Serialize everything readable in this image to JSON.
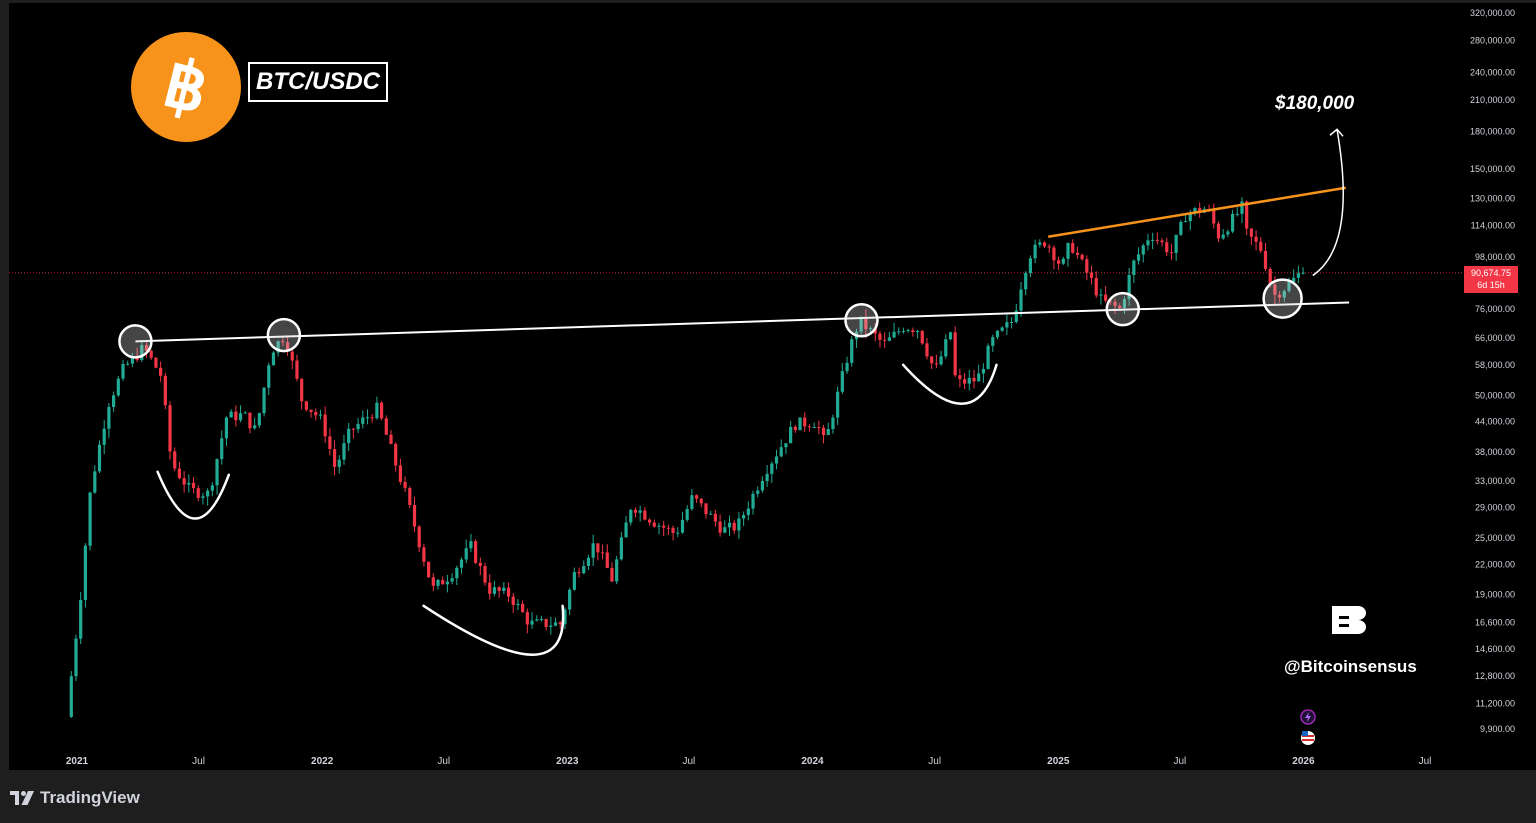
{
  "header": {
    "pair": "BTC/USDC",
    "target": "$180,000",
    "watermark": "@Bitcoinsensus"
  },
  "footer": {
    "brand": "TradingView"
  },
  "last_price": {
    "value": "90,674.75",
    "countdown": "6d 15h"
  },
  "colors": {
    "background": "#000000",
    "up": "#22ab94",
    "down": "#f23645",
    "bitcoin": "#f7931a",
    "resistance_line": "#ffffff",
    "rising_line": "#f7931a"
  },
  "icons": [
    "bitcoin-logo",
    "bitcoinsensus-logo",
    "flash-icon",
    "us-flag-icon",
    "tradingview-logo"
  ],
  "chart_data": {
    "type": "candlestick",
    "title": "BTC/USDC",
    "yscale": "log",
    "ylim": [
      9000,
      330000
    ],
    "y_ticks": [
      320000,
      280000,
      240000,
      210000,
      180000,
      150000,
      130000,
      114000,
      98000,
      90000,
      76000,
      66000,
      58000,
      50000,
      44000,
      38000,
      33000,
      29000,
      25000,
      22000,
      19000,
      16600,
      14600,
      12800,
      11200,
      9900
    ],
    "y_tick_labels": [
      "320,000.00",
      "280,000.00",
      "240,000.00",
      "210,000.00",
      "180,000.00",
      "150,000.00",
      "130,000.00",
      "114,000.00",
      "98,000.00",
      "",
      "76,000.00",
      "66,000.00",
      "58,000.00",
      "50,000.00",
      "44,000.00",
      "38,000.00",
      "33,000.00",
      "29,000.00",
      "25,000.00",
      "22,000.00",
      "19,000.00",
      "16,600.00",
      "14,600.00",
      "12,800.00",
      "11,200.00",
      "9,900.00"
    ],
    "x_ticks": [
      "2021-01-01",
      "2021-07-01",
      "2022-01-01",
      "2022-07-01",
      "2023-01-01",
      "2023-07-01",
      "2024-01-01",
      "2024-07-01",
      "2025-01-01",
      "2025-07-01",
      "2026-01-01",
      "2026-07-01"
    ],
    "x_tick_labels": [
      "2021",
      "Jul",
      "2022",
      "Jul",
      "2023",
      "Jul",
      "2024",
      "Jul",
      "2025",
      "Jul",
      "2026",
      "Jul"
    ],
    "price_path": [
      [
        "2020-12-20",
        10500
      ],
      [
        "2021-01-10",
        19000
      ],
      [
        "2021-01-25",
        32000
      ],
      [
        "2021-02-20",
        48000
      ],
      [
        "2021-03-15",
        57000
      ],
      [
        "2021-04-14",
        63000
      ],
      [
        "2021-05-10",
        55000
      ],
      [
        "2021-05-25",
        36000
      ],
      [
        "2021-06-22",
        31500
      ],
      [
        "2021-07-20",
        31000
      ],
      [
        "2021-08-15",
        45000
      ],
      [
        "2021-09-10",
        45500
      ],
      [
        "2021-09-28",
        42000
      ],
      [
        "2021-10-20",
        62000
      ],
      [
        "2021-11-10",
        67000
      ],
      [
        "2021-12-05",
        49000
      ],
      [
        "2022-01-05",
        44000
      ],
      [
        "2022-01-24",
        35000
      ],
      [
        "2022-02-15",
        42000
      ],
      [
        "2022-03-28",
        47000
      ],
      [
        "2022-05-10",
        30500
      ],
      [
        "2022-06-18",
        19500
      ],
      [
        "2022-07-15",
        21000
      ],
      [
        "2022-08-14",
        24000
      ],
      [
        "2022-09-10",
        19500
      ],
      [
        "2022-10-10",
        19000
      ],
      [
        "2022-11-10",
        16500
      ],
      [
        "2022-12-25",
        16500
      ],
      [
        "2023-01-15",
        21000
      ],
      [
        "2023-02-15",
        24500
      ],
      [
        "2023-03-12",
        20500
      ],
      [
        "2023-04-10",
        29500
      ],
      [
        "2023-05-15",
        27000
      ],
      [
        "2023-06-15",
        25500
      ],
      [
        "2023-07-10",
        30500
      ],
      [
        "2023-08-25",
        26000
      ],
      [
        "2023-09-15",
        26500
      ],
      [
        "2023-10-25",
        34500
      ],
      [
        "2023-12-10",
        43500
      ],
      [
        "2024-01-10",
        44000
      ],
      [
        "2024-01-23",
        39500
      ],
      [
        "2024-02-28",
        62000
      ],
      [
        "2024-03-14",
        72000
      ],
      [
        "2024-04-20",
        64000
      ],
      [
        "2024-05-20",
        70000
      ],
      [
        "2024-06-10",
        69000
      ],
      [
        "2024-07-05",
        56000
      ],
      [
        "2024-07-28",
        68000
      ],
      [
        "2024-08-05",
        53000
      ],
      [
        "2024-09-06",
        54000
      ],
      [
        "2024-09-28",
        65000
      ],
      [
        "2024-10-29",
        72000
      ],
      [
        "2024-11-12",
        88000
      ],
      [
        "2024-11-22",
        99000
      ],
      [
        "2024-12-17",
        106000
      ],
      [
        "2025-01-10",
        93000
      ],
      [
        "2025-01-22",
        105000
      ],
      [
        "2025-02-25",
        86000
      ],
      [
        "2025-03-10",
        79000
      ],
      [
        "2025-04-07",
        76000
      ],
      [
        "2025-04-25",
        94000
      ],
      [
        "2025-05-22",
        110000
      ],
      [
        "2025-06-22",
        100000
      ],
      [
        "2025-07-14",
        121000
      ],
      [
        "2025-08-14",
        124000
      ],
      [
        "2025-09-01",
        108000
      ],
      [
        "2025-10-06",
        125000
      ],
      [
        "2025-10-11",
        110000
      ],
      [
        "2025-11-04",
        101000
      ],
      [
        "2025-11-21",
        81000
      ],
      [
        "2025-12-15",
        86000
      ],
      [
        "2025-12-31",
        90674.75
      ]
    ],
    "annotations": {
      "resistance_line": {
        "from": [
          "2021-03-29",
          65000
        ],
        "to": [
          "2026-03-10",
          78500
        ]
      },
      "rising_line": {
        "from": [
          "2024-12-17",
          108000
        ],
        "to": [
          "2026-03-05",
          137000
        ]
      },
      "touch_circles": [
        [
          "2021-03-29",
          65000
        ],
        [
          "2021-11-05",
          67000
        ],
        [
          "2024-03-14",
          72000
        ],
        [
          "2025-04-07",
          76000
        ],
        [
          "2025-12-01",
          80000
        ]
      ],
      "bowls": [
        {
          "from": [
            "2021-05-01",
            34500
          ],
          "to": [
            "2021-08-15",
            34000
          ],
          "bottom": [
            "2021-06-25",
            27500
          ]
        },
        {
          "from": [
            "2022-06-01",
            18000
          ],
          "to": [
            "2022-12-25",
            18000
          ],
          "bottom": [
            "2022-11-10",
            14200
          ]
        },
        {
          "from": [
            "2024-05-15",
            58000
          ],
          "to": [
            "2024-10-01",
            58000
          ],
          "bottom": [
            "2024-08-10",
            48000
          ]
        }
      ],
      "projection_arrow": {
        "from": [
          "2025-12-31",
          89500
        ],
        "to": [
          "2026-02-20",
          182000
        ]
      }
    }
  }
}
